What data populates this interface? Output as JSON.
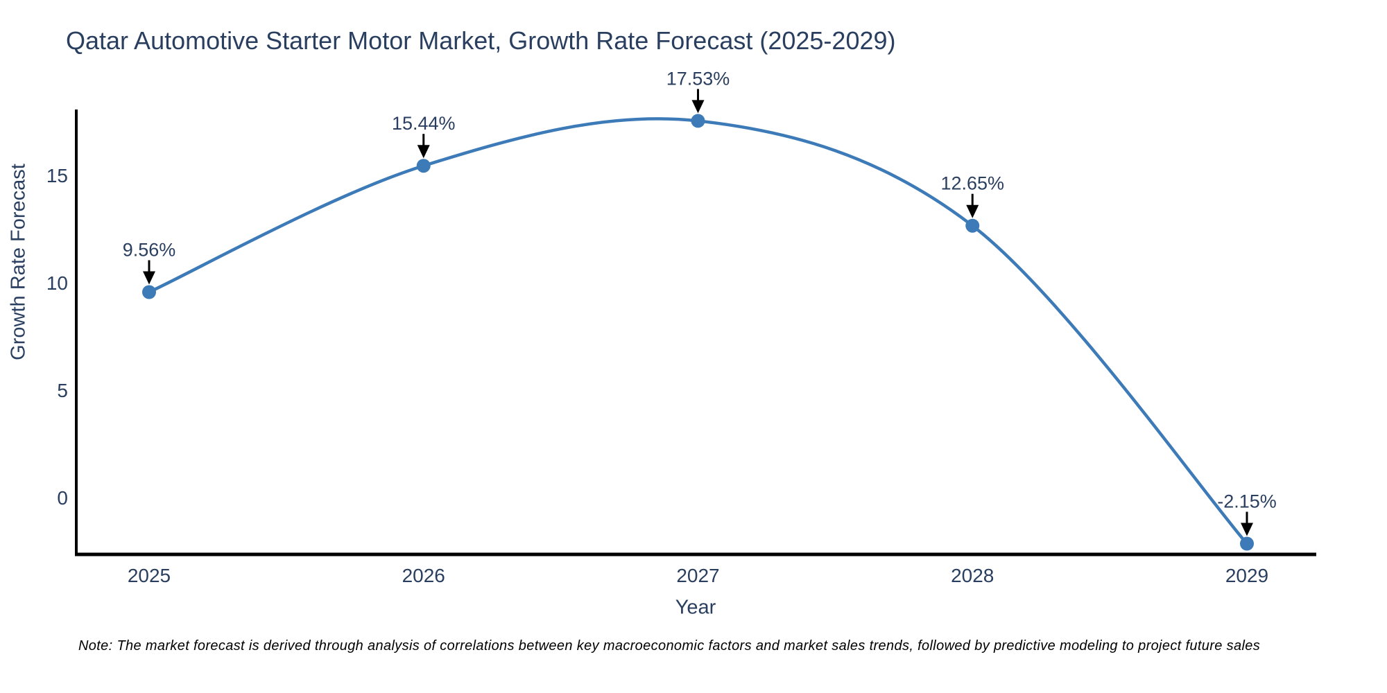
{
  "title": "Qatar Automotive Starter Motor Market, Growth Rate Forecast (2025-2029)",
  "note": "Note: The market forecast is derived through analysis of correlations between key macroeconomic factors and market sales trends, followed by predictive modeling to project future sales",
  "chart_data": {
    "type": "line",
    "line_shape": "spline",
    "title": "Qatar Automotive Starter Motor Market, Growth Rate Forecast (2025-2029)",
    "xlabel": "Year",
    "ylabel": "Growth Rate Forecast",
    "categories": [
      "2025",
      "2026",
      "2027",
      "2028",
      "2029"
    ],
    "series": [
      {
        "name": "Growth Rate Forecast",
        "values": [
          9.56,
          15.44,
          17.53,
          12.65,
          -2.15
        ],
        "point_labels": [
          "9.56%",
          "15.44%",
          "17.53%",
          "12.65%",
          "-2.15%"
        ]
      }
    ],
    "yticks": [
      0,
      5,
      10,
      15
    ],
    "ylim": [
      -2.65,
      18.06
    ],
    "grid": false,
    "legend_position": "none",
    "markers": true,
    "annotations_have_arrows": true,
    "colors": {
      "line": "#3d7ab8",
      "marker": "#3d7ab8",
      "axis_line": "#000000",
      "tick_text": "#2a3f5f",
      "annotation_text": "#2a3f5f",
      "annotation_arrow": "#000000",
      "background": "#ffffff"
    }
  }
}
